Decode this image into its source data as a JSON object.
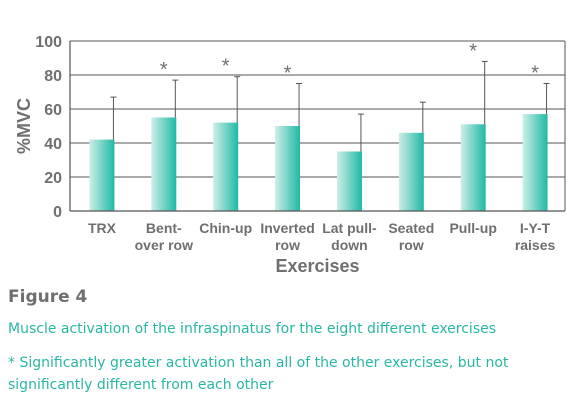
{
  "figure": {
    "label": "Figure 4",
    "caption": "Muscle activation of the infraspinatus for the eight different exercises",
    "footnote": "* Significantly greater activation than all of the other exercises, but not significantly different from each other"
  },
  "colors": {
    "bar_dark": "#1fb9a5",
    "bar_light": "#cdeee8",
    "text": "#6f6f6f",
    "grid": "#555555",
    "caption": "#2ab6a4"
  },
  "chart_data": {
    "type": "bar",
    "title": "",
    "xlabel": "Exercises",
    "ylabel": "%MVC",
    "ylim": [
      0,
      100
    ],
    "yticks": [
      0,
      20,
      40,
      60,
      80,
      100
    ],
    "grid": true,
    "categories": [
      [
        "TRX"
      ],
      [
        "Bent-",
        "over row"
      ],
      [
        "Chin-up"
      ],
      [
        "Inverted",
        "row"
      ],
      [
        "Lat pull-",
        "down"
      ],
      [
        "Seated",
        "row"
      ],
      [
        "Pull-up"
      ],
      [
        "I-Y-T",
        "raises"
      ]
    ],
    "values": [
      42,
      55,
      52,
      50,
      35,
      46,
      51,
      57
    ],
    "error_upper": [
      67,
      77,
      79,
      75,
      57,
      64,
      88,
      75
    ],
    "significant": [
      false,
      true,
      true,
      true,
      false,
      false,
      true,
      true
    ],
    "significance_marker": "*"
  }
}
